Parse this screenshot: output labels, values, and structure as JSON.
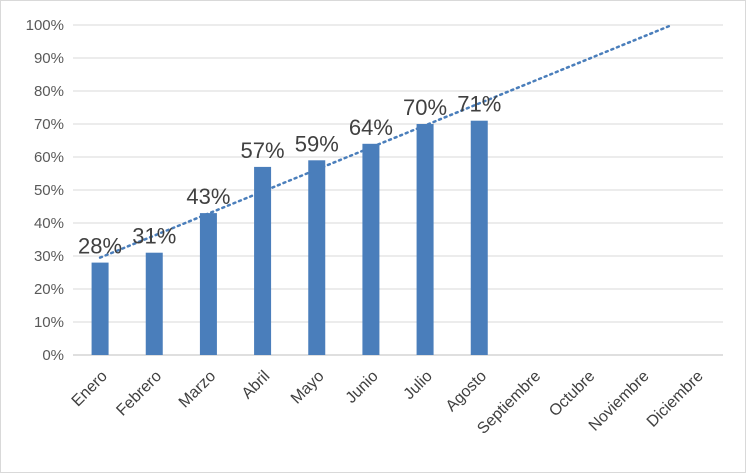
{
  "chart_data": {
    "type": "bar",
    "categories": [
      "Enero",
      "Febrero",
      "Marzo",
      "Abril",
      "Mayo",
      "Junio",
      "Julio",
      "Agosto",
      "Septiembre",
      "Octubre",
      "Noviembre",
      "Diciembre"
    ],
    "series": [
      {
        "values": [
          0.28,
          0.31,
          0.43,
          0.57,
          0.59,
          0.64,
          0.7,
          0.71,
          null,
          null,
          null,
          null
        ],
        "data_labels": [
          "28%",
          "31%",
          "43%",
          "57%",
          "59%",
          "64%",
          "70%",
          "71%"
        ],
        "color": "#4a7ebb"
      }
    ],
    "trendline": {
      "type": "linear",
      "style": "dotted",
      "color": "#4a7ebb"
    },
    "ylim": [
      0,
      1
    ],
    "yticks": [
      "0%",
      "10%",
      "20%",
      "30%",
      "40%",
      "50%",
      "60%",
      "70%",
      "80%",
      "90%",
      "100%"
    ],
    "title": "",
    "xlabel": "",
    "ylabel": "",
    "grid": true,
    "legend": "none"
  }
}
